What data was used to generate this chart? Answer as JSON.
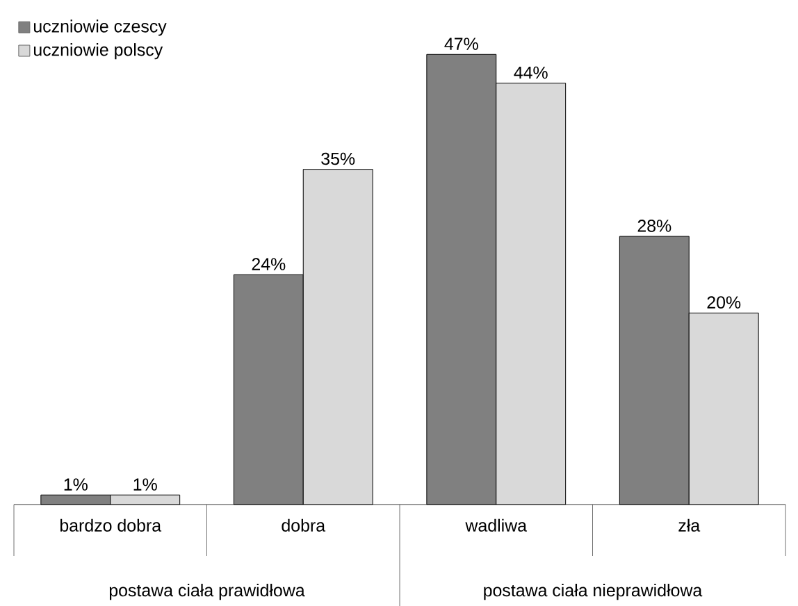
{
  "chart_data": {
    "type": "bar",
    "categories": [
      "bardzo dobra",
      "dobra",
      "wadliwa",
      "zła"
    ],
    "series": [
      {
        "name": "uczniowie czescy",
        "color": "#808080",
        "values": [
          1,
          24,
          47,
          28
        ],
        "value_labels": [
          "1%",
          "24%",
          "47%",
          "28%"
        ]
      },
      {
        "name": "uczniowie polscy",
        "color": "#d9d9d9",
        "values": [
          1,
          35,
          44,
          20
        ],
        "value_labels": [
          "1%",
          "35%",
          "44%",
          "20%"
        ]
      }
    ],
    "annotations": [
      "postawa ciała prawidłowa",
      "postawa ciała nieprawidłowa"
    ],
    "legend": "top left"
  }
}
